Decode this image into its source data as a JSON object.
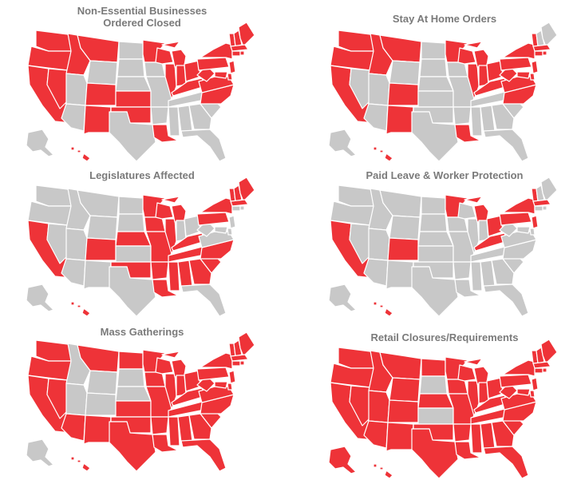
{
  "colors": {
    "affected": "#ee3338",
    "unaffected": "#c8c8c8",
    "border": "#ffffff",
    "title": "#7a7a7a"
  },
  "panels": [
    {
      "title": "Non-Essential Businesses\nOrdered Closed",
      "red": [
        "WA",
        "OR",
        "CA",
        "ID",
        "MT",
        "NV",
        "CO",
        "NM",
        "MN",
        "WI",
        "IL",
        "MI",
        "IN",
        "OH",
        "KY",
        "KS",
        "OK",
        "LA",
        "NC",
        "VA",
        "WV",
        "PA",
        "NY",
        "VT",
        "NH",
        "ME",
        "MA",
        "CT",
        "RI",
        "NJ",
        "DE",
        "MD",
        "HI"
      ]
    },
    {
      "title": "Stay At Home Orders",
      "red": [
        "WA",
        "OR",
        "CA",
        "ID",
        "MT",
        "CO",
        "NM",
        "MN",
        "WI",
        "IL",
        "MI",
        "IN",
        "OH",
        "KY",
        "LA",
        "NC",
        "VA",
        "WV",
        "PA",
        "NY",
        "VT",
        "MA",
        "CT",
        "RI",
        "NJ",
        "DE",
        "MD",
        "HI"
      ]
    },
    {
      "title": "Legislatures Affected",
      "red": [
        "CA",
        "CO",
        "NE",
        "OK",
        "MN",
        "WI",
        "IL",
        "IA",
        "MI",
        "AR",
        "MO",
        "LA",
        "MS",
        "AL",
        "GA",
        "TN",
        "KY",
        "SC",
        "NC",
        "PA",
        "NY",
        "VT",
        "NH",
        "ME",
        "MA",
        "HI"
      ]
    },
    {
      "title": "Paid Leave & Worker Protection",
      "red": [
        "CA",
        "CO",
        "MN",
        "MI",
        "KY",
        "OH",
        "PA",
        "NY",
        "VT",
        "MA",
        "NJ",
        "HI"
      ]
    },
    {
      "title": "Mass Gatherings",
      "red": [
        "WA",
        "OR",
        "CA",
        "NV",
        "MT",
        "AZ",
        "NM",
        "TX",
        "ND",
        "KS",
        "OK",
        "MN",
        "IA",
        "MO",
        "AR",
        "LA",
        "WI",
        "IL",
        "MI",
        "IN",
        "OH",
        "KY",
        "TN",
        "MS",
        "AL",
        "GA",
        "FL",
        "SC",
        "NC",
        "VA",
        "WV",
        "PA",
        "NY",
        "VT",
        "NH",
        "ME",
        "MA",
        "CT",
        "RI",
        "NJ",
        "DE",
        "MD",
        "HI"
      ]
    },
    {
      "title": "Retail Closures/Requirements",
      "red": [
        "WA",
        "OR",
        "CA",
        "ID",
        "NV",
        "UT",
        "AZ",
        "MT",
        "WY",
        "CO",
        "NM",
        "TX",
        "ND",
        "NE",
        "OK",
        "MN",
        "IA",
        "MO",
        "AR",
        "LA",
        "WI",
        "IL",
        "MI",
        "IN",
        "OH",
        "KY",
        "TN",
        "MS",
        "AL",
        "GA",
        "FL",
        "SC",
        "NC",
        "VA",
        "WV",
        "PA",
        "NY",
        "VT",
        "NH",
        "ME",
        "MA",
        "CT",
        "RI",
        "NJ",
        "DE",
        "MD",
        "AK",
        "HI"
      ]
    }
  ]
}
